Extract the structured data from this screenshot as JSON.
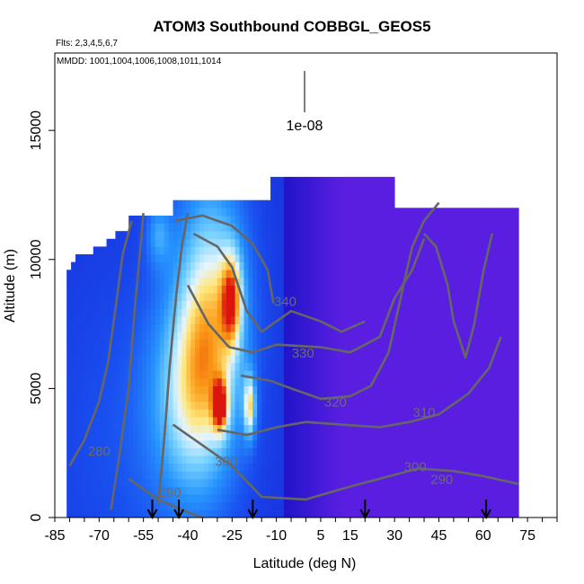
{
  "chart_data": {
    "type": "heatmap",
    "title": "ATOM3 Southbound COBBGL_GEOS5",
    "annotation_flights": "Flts: 2,3,4,5,6,7",
    "annotation_dates": "MMDD: 1001,1004,1006,1008,1011,1014",
    "scale_label": "1e-08",
    "xlabel": "Latitude (deg N)",
    "ylabel": "Altitude (m)",
    "xlim": [
      -85,
      85
    ],
    "ylim": [
      0,
      18000
    ],
    "xticks": [
      -85,
      -70,
      -55,
      -40,
      -25,
      -10,
      5,
      15,
      30,
      45,
      60,
      75
    ],
    "xtick_labels": [
      "-85",
      "-70",
      "-55",
      "-40",
      "-25",
      "-10",
      "5",
      "15",
      "30",
      "45",
      "60",
      "75"
    ],
    "xminor_step": 5,
    "yticks": [
      0,
      5000,
      10000,
      15000
    ],
    "ytick_labels": [
      "0",
      "5000",
      "10000",
      "15000"
    ],
    "contour_labels": [
      {
        "text": "280",
        "lat": -70,
        "alt": 2400
      },
      {
        "text": "290",
        "lat": -46,
        "alt": 800
      },
      {
        "text": "300",
        "lat": -27,
        "alt": 2000
      },
      {
        "text": "340",
        "lat": -7,
        "alt": 8200
      },
      {
        "text": "330",
        "lat": -1,
        "alt": 6200
      },
      {
        "text": "320",
        "lat": 10,
        "alt": 4300
      },
      {
        "text": "310",
        "lat": 40,
        "alt": 3900
      },
      {
        "text": "300",
        "lat": 37,
        "alt": 1800
      },
      {
        "text": "290",
        "lat": 46,
        "alt": 1300
      }
    ],
    "flight_arrows_lat": [
      -52,
      -43,
      -18,
      20,
      61
    ],
    "colors": {
      "low": "#1a10d0",
      "purple": "#5a20e0",
      "mid": "#2fa0ff",
      "high": "#e82010",
      "contour": "#666666"
    }
  }
}
